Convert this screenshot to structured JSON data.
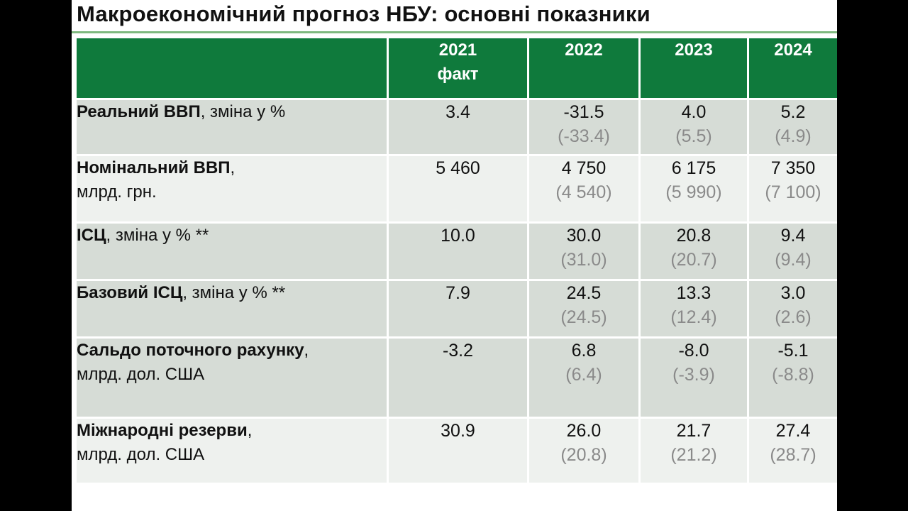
{
  "title": "Макроекономічний прогноз НБУ: основні показники",
  "colors": {
    "header_green": "#0f7a3c",
    "row_shade": "#d6dcd6",
    "row_light": "#eef1ee",
    "prev_forecast_gray": "#8a8a8a"
  },
  "header": {
    "col1_year": "2021",
    "col1_note": "факт",
    "col2_year": "2022",
    "col3_year": "2023",
    "col4_year": "2024"
  },
  "rows": [
    {
      "bold": "Реальний ВВП",
      "rest": ", зміна у %",
      "line2": "",
      "c1": "3.4",
      "c2": "-31.5",
      "c2p": "(-33.4)",
      "c3": "4.0",
      "c3p": "(5.5)",
      "c4": "5.2",
      "c4p": "(4.9)"
    },
    {
      "bold": "Номінальний ВВП",
      "rest": ",",
      "line2": "млрд. грн.",
      "c1": "5 460",
      "c2": "4 750",
      "c2p": "(4 540)",
      "c3": "6 175",
      "c3p": "(5 990)",
      "c4": "7 350",
      "c4p": "(7 100)"
    },
    {
      "bold": "ІСЦ",
      "rest": ", зміна у % **",
      "line2": "",
      "c1": "10.0",
      "c2": "30.0",
      "c2p": "(31.0)",
      "c3": "20.8",
      "c3p": "(20.7)",
      "c4": "9.4",
      "c4p": "(9.4)"
    },
    {
      "bold": "Базовий ІСЦ",
      "rest": ", зміна у % **",
      "line2": "",
      "c1": "7.9",
      "c2": "24.5",
      "c2p": "(24.5)",
      "c3": "13.3",
      "c3p": "(12.4)",
      "c4": "3.0",
      "c4p": "(2.6)"
    },
    {
      "bold": "Сальдо поточного рахунку",
      "rest": ",",
      "line2": "млрд. дол. США",
      "c1": "-3.2",
      "c2": "6.8",
      "c2p": "(6.4)",
      "c3": "-8.0",
      "c3p": "(-3.9)",
      "c4": "-5.1",
      "c4p": "(-8.8)"
    },
    {
      "bold": "Міжнародні резерви",
      "rest": ",",
      "line2": "млрд. дол. США",
      "c1": "30.9",
      "c2": "26.0",
      "c2p": "(20.8)",
      "c3": "21.7",
      "c3p": "(21.2)",
      "c4": "27.4",
      "c4p": "(28.7)"
    }
  ]
}
